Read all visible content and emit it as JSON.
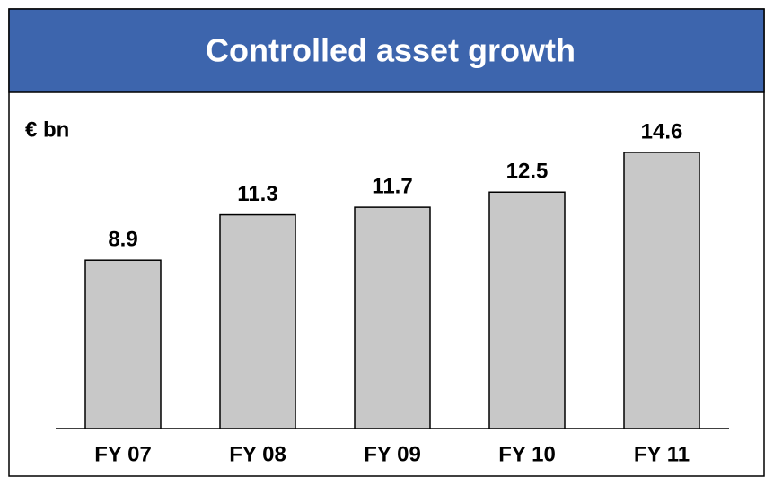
{
  "chart_data": {
    "type": "bar",
    "title": "Controlled asset growth",
    "unit_label": "€ bn",
    "categories": [
      "FY 07",
      "FY 08",
      "FY 09",
      "FY 10",
      "FY 11"
    ],
    "values": [
      8.9,
      11.3,
      11.7,
      12.5,
      14.6
    ],
    "color": "#c8c8c8"
  }
}
